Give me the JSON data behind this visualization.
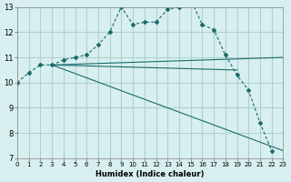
{
  "xlabel": "Humidex (Indice chaleur)",
  "ylabel": "",
  "bg_color": "#d8eff0",
  "grid_color": "#b0d0d0",
  "line_color": "#1a6b6b",
  "xlim": [
    0,
    23
  ],
  "ylim": [
    7,
    13
  ],
  "xticks": [
    0,
    1,
    2,
    3,
    4,
    5,
    6,
    7,
    8,
    9,
    10,
    11,
    12,
    13,
    14,
    15,
    16,
    17,
    18,
    19,
    20,
    21,
    22,
    23
  ],
  "yticks": [
    7,
    8,
    9,
    10,
    11,
    12,
    13
  ],
  "lines": [
    {
      "x": [
        0,
        1,
        2,
        3,
        4,
        5,
        6,
        7,
        8,
        9,
        10,
        11,
        12,
        13,
        14,
        15,
        16,
        17,
        18,
        19,
        20,
        21,
        22,
        23
      ],
      "y": [
        10.0,
        10.4,
        10.7,
        10.7,
        10.9,
        11.0,
        11.1,
        11.5,
        12.0,
        13.0,
        12.3,
        12.4,
        12.4,
        12.9,
        13.0,
        13.3,
        12.3,
        12.1,
        11.1,
        10.3,
        9.7,
        8.4,
        7.3,
        null
      ],
      "has_markers": true
    },
    {
      "x": [
        3,
        23
      ],
      "y": [
        10.7,
        11.0
      ],
      "has_markers": false
    },
    {
      "x": [
        3,
        19
      ],
      "y": [
        10.7,
        10.5
      ],
      "has_markers": false
    },
    {
      "x": [
        3,
        23
      ],
      "y": [
        10.7,
        7.3
      ],
      "has_markers": false
    }
  ]
}
